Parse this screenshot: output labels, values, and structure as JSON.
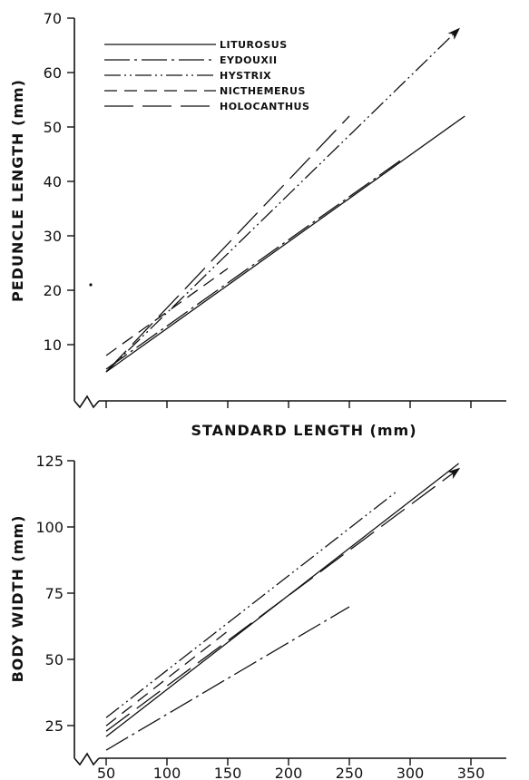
{
  "chart_data": [
    {
      "type": "line",
      "panel": "top",
      "ylabel": "PEDUNCLE LENGTH (mm)",
      "xlabel": "STANDARD LENGTH (mm)",
      "xlim": [
        50,
        350
      ],
      "ylim": [
        0,
        70
      ],
      "yticks": [
        10,
        20,
        30,
        40,
        50,
        60,
        70
      ],
      "legend_position": "top-left",
      "series": [
        {
          "name": "LITUROSUS",
          "style": "solid",
          "x": [
            50,
            345
          ],
          "y": [
            5,
            52
          ]
        },
        {
          "name": "EYDOUXII",
          "style": "dashdot",
          "x": [
            50,
            293
          ],
          "y": [
            5.5,
            44
          ]
        },
        {
          "name": "HYSTRIX",
          "style": "dashdot2",
          "x": [
            50,
            340
          ],
          "y": [
            5,
            68
          ],
          "arrow": true
        },
        {
          "name": "NICTHEMERUS",
          "style": "dashed",
          "x": [
            50,
            150
          ],
          "y": [
            8,
            24
          ]
        },
        {
          "name": "HOLOCANTHUS",
          "style": "longdash",
          "x": [
            50,
            250
          ],
          "y": [
            5,
            52
          ]
        }
      ]
    },
    {
      "type": "line",
      "panel": "bottom",
      "ylabel": "BODY WIDTH (mm)",
      "xlabel": "",
      "xlim": [
        50,
        350
      ],
      "ylim": [
        15,
        125
      ],
      "xticks": [
        50,
        100,
        150,
        200,
        250,
        300,
        350
      ],
      "yticks": [
        25,
        50,
        75,
        100,
        125
      ],
      "series": [
        {
          "name": "LITUROSUS",
          "style": "solid",
          "x": [
            50,
            340
          ],
          "y": [
            23,
            124
          ]
        },
        {
          "name": "EYDOUXII",
          "style": "dashdot",
          "x": [
            50,
            250
          ],
          "y": [
            18,
            71
          ]
        },
        {
          "name": "HYSTRIX",
          "style": "dashdot2",
          "x": [
            50,
            290
          ],
          "y": [
            30,
            114
          ]
        },
        {
          "name": "NICTHEMERUS",
          "style": "dashed",
          "x": [
            50,
            150
          ],
          "y": [
            27,
            62
          ]
        },
        {
          "name": "HOLOCANTHUS",
          "style": "longdash",
          "x": [
            50,
            340
          ],
          "y": [
            25,
            122
          ],
          "arrow": true
        }
      ]
    }
  ]
}
